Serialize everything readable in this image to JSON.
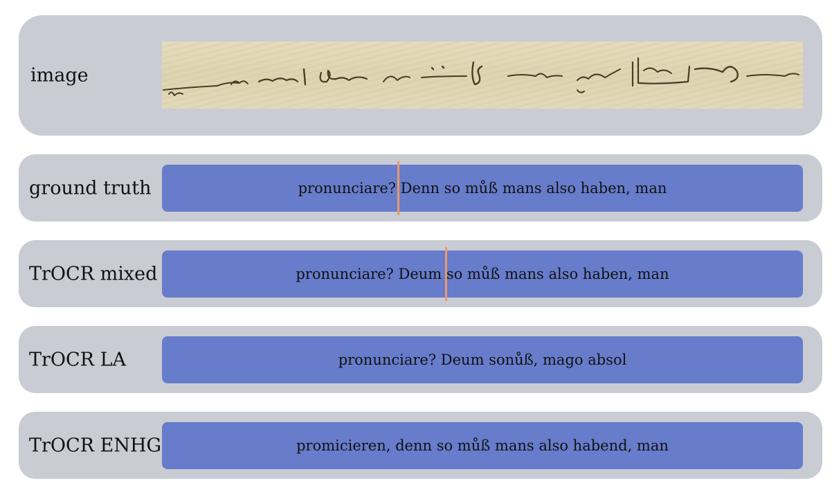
{
  "image_panel": {
    "label": "image"
  },
  "rows": [
    {
      "label": "ground truth",
      "text": "pronunciare? Denn so můß mans also haben, man",
      "marker_after_word": "pronunciare?"
    },
    {
      "label": "TrOCR mixed",
      "text": "pronunciare? Deum so můß mans also haben, man",
      "marker_after_word": "Deum"
    },
    {
      "label": "TrOCR LA",
      "text": "pronunciare? Deum sonůß, mago absol"
    },
    {
      "label": "TrOCR ENHG",
      "text": "promicieren, denn so můß mans also habend, man"
    }
  ],
  "colors": {
    "panel_background": "#c9ccd3",
    "text_bar": "#677ccb",
    "alignment_marker": "#e99a6e",
    "parchment": "#e3d9b8",
    "ink": "#4a3a26"
  }
}
